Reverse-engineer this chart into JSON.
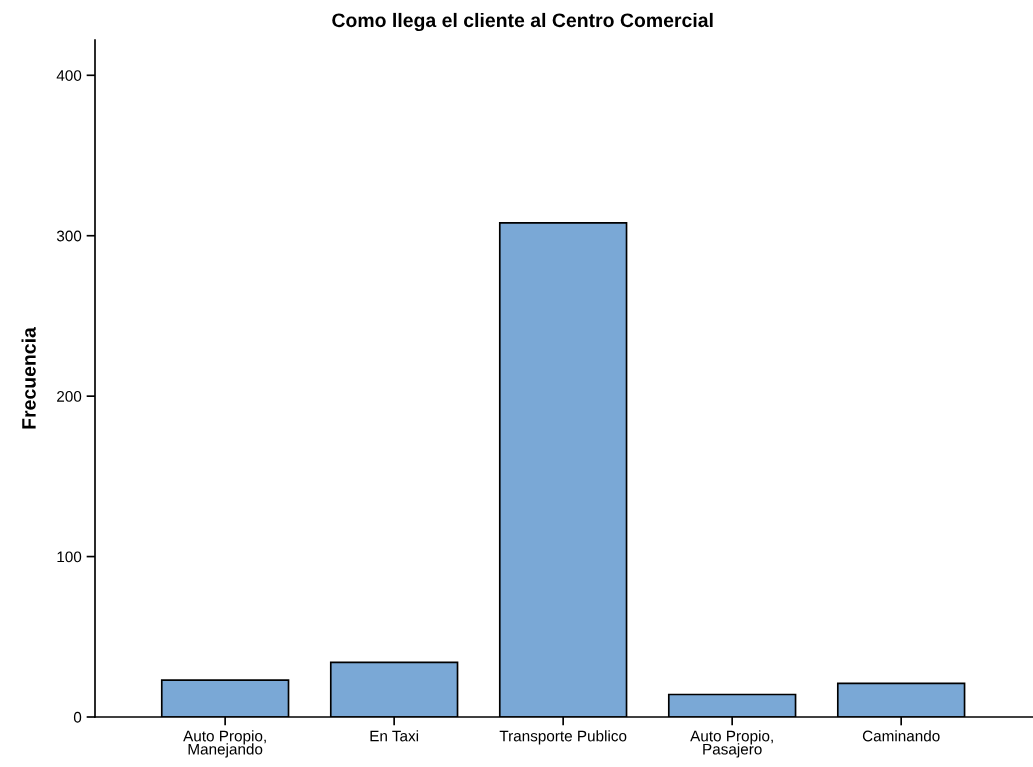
{
  "chart_data": {
    "type": "bar",
    "title": "Como llega el cliente al Centro Comercial",
    "ylabel": "Frecuencia",
    "categories": [
      "Auto Propio,\nManejando",
      "En Taxi",
      "Transporte Publico",
      "Auto Propio,\nPasajero",
      "Caminando"
    ],
    "values": [
      23,
      34,
      308,
      14,
      21
    ],
    "color": "#7aa8d6",
    "ylim": [
      0,
      422
    ],
    "yticks": [
      0,
      100,
      200,
      300,
      400
    ],
    "grid": false,
    "legend": false
  }
}
